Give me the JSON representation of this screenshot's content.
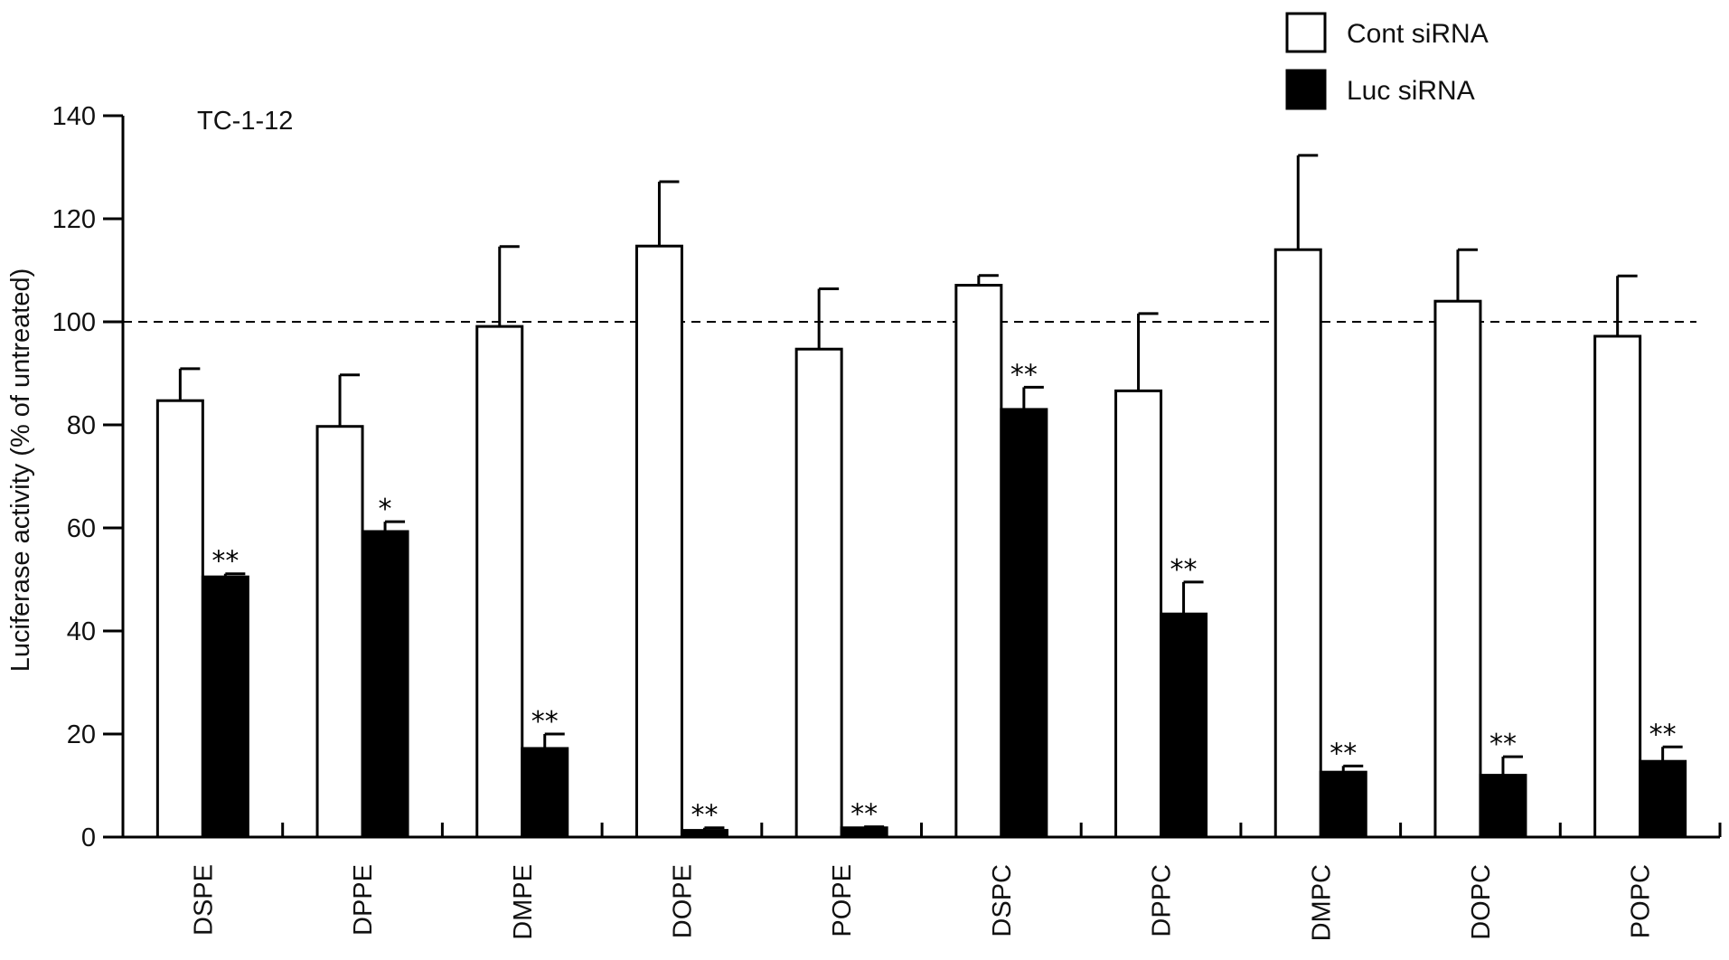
{
  "chart_data": {
    "type": "bar",
    "panel_label": "TC-1-12",
    "ylabel": "Luciferase activity (% of untreated)",
    "xlabel": "",
    "ylim": [
      0,
      140
    ],
    "yticks": [
      0,
      20,
      40,
      60,
      80,
      100,
      120,
      140
    ],
    "reference_line": 100,
    "categories": [
      "DSPE",
      "DPPE",
      "DMPE",
      "DOPE",
      "POPE",
      "DSPC",
      "DPPC",
      "DMPC",
      "DOPC",
      "POPC"
    ],
    "series": [
      {
        "name": "Cont siRNA",
        "color": "#ffffff",
        "values": [
          84.7,
          79.7,
          99.1,
          114.7,
          94.7,
          107.1,
          86.6,
          114.0,
          104.0,
          97.2
        ],
        "errors": [
          6.2,
          10.0,
          15.5,
          12.5,
          11.7,
          1.9,
          15.0,
          18.3,
          10.0,
          11.7
        ]
      },
      {
        "name": "Luc siRNA",
        "color": "#000000",
        "values": [
          50.5,
          59.3,
          17.2,
          1.3,
          1.8,
          83.0,
          43.3,
          12.6,
          12.0,
          14.7
        ],
        "errors": [
          0.6,
          1.9,
          2.8,
          0.5,
          0.2,
          4.3,
          6.2,
          1.2,
          3.6,
          2.8
        ],
        "significance": [
          "**",
          "*",
          "**",
          "**",
          "**",
          "**",
          "**",
          "**",
          "**",
          "**"
        ]
      }
    ],
    "legend_position": "top-right",
    "grid": false
  }
}
